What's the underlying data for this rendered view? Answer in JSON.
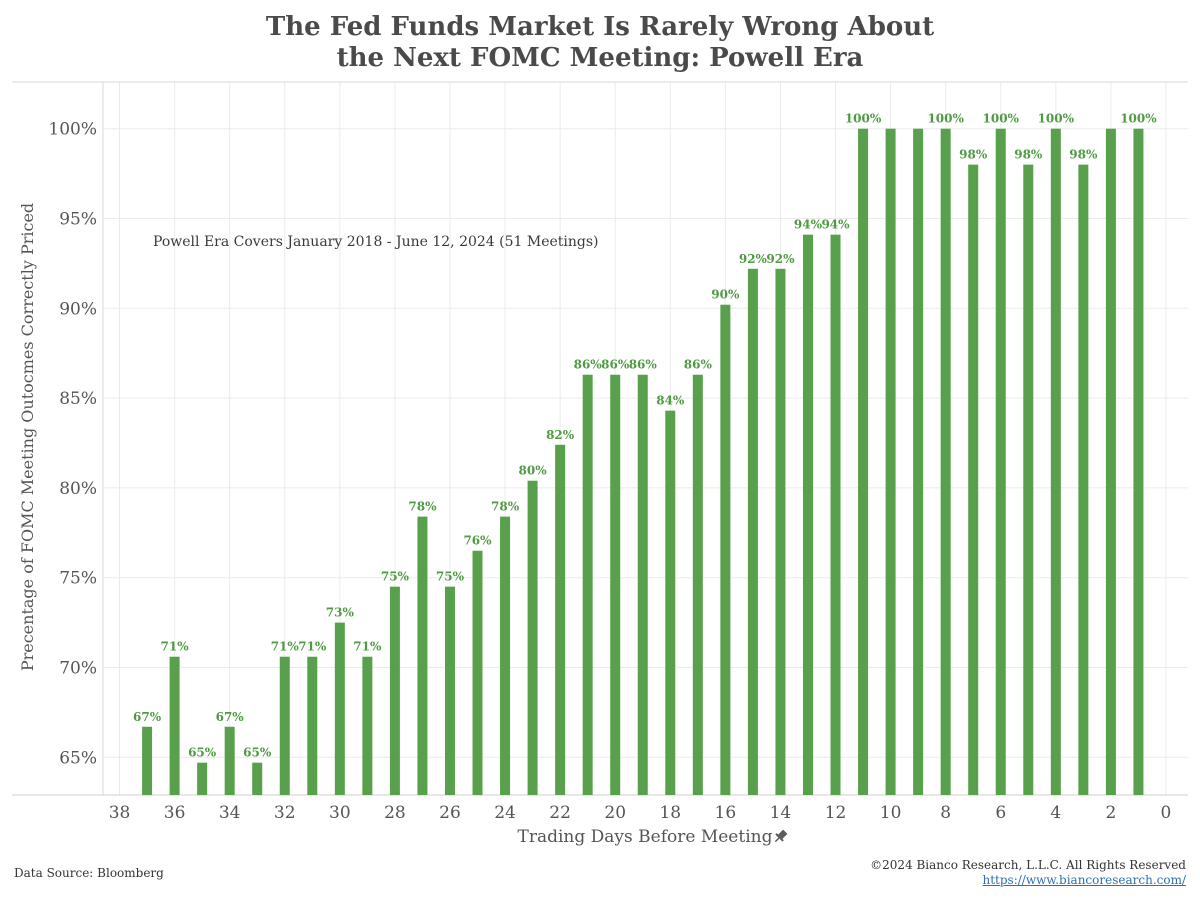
{
  "title_line1": "The Fed Funds Market Is Rarely Wrong About",
  "title_line2": "the Next FOMC Meeting: Powell Era",
  "footer": {
    "source": "Data Source: Bloomberg",
    "copyright": "©2024 Bianco Research, L.L.C. All Rights Reserved",
    "url": "https://www.biancoresearch.com/"
  },
  "colors": {
    "bar": "#58a04c",
    "label": "#4e9a41",
    "grid": "#ebebeb",
    "text": "#4a4a4a"
  },
  "chart_data": {
    "type": "bar",
    "xlabel": "Trading Days Before Meeting",
    "xlabel_icon": "pin-icon",
    "ylabel": "Precentage of FOMC Meeting Outocmes Correctly Priced",
    "annotation": "Powell Era Covers January 2018 - June 12, 2024 (51 Meetings)",
    "x_ticks": [
      38,
      36,
      34,
      32,
      30,
      28,
      26,
      24,
      22,
      20,
      18,
      16,
      14,
      12,
      10,
      8,
      6,
      4,
      2,
      0
    ],
    "y_ticks": [
      65,
      70,
      75,
      80,
      85,
      90,
      95,
      100
    ],
    "y_tick_labels": [
      "65%",
      "70%",
      "75%",
      "80%",
      "85%",
      "90%",
      "95%",
      "100%"
    ],
    "ylim": [
      62.9,
      102.6
    ],
    "xlim": [
      38.6,
      -0.8
    ],
    "grid": true,
    "x": [
      37,
      36,
      35,
      34,
      33,
      32,
      31,
      30,
      29,
      28,
      27,
      26,
      25,
      24,
      23,
      22,
      21,
      20,
      19,
      18,
      17,
      16,
      15,
      14,
      13,
      12,
      11,
      10,
      9,
      8,
      7,
      6,
      5,
      4,
      3,
      2,
      1
    ],
    "values": [
      66.7,
      70.6,
      64.7,
      66.7,
      64.7,
      70.6,
      70.6,
      72.5,
      70.6,
      74.5,
      78.4,
      74.5,
      76.5,
      78.4,
      80.4,
      82.4,
      86.3,
      86.3,
      86.3,
      84.3,
      86.3,
      90.2,
      92.2,
      92.2,
      94.1,
      94.1,
      100,
      100,
      100,
      100,
      98.0,
      100,
      98.0,
      100,
      98.0,
      100,
      100
    ],
    "labels": [
      "67%",
      "71%",
      "65%",
      "67%",
      "65%",
      "71%",
      "71%",
      "73%",
      "71%",
      "75%",
      "78%",
      "75%",
      "76%",
      "78%",
      "80%",
      "82%",
      "86%",
      "86%",
      "86%",
      "84%",
      "86%",
      "90%",
      "92%",
      "92%",
      "94%",
      "94%",
      "100%",
      "",
      "",
      "100%",
      "98%",
      "100%",
      "98%",
      "100%",
      "98%",
      "",
      "100%"
    ]
  }
}
